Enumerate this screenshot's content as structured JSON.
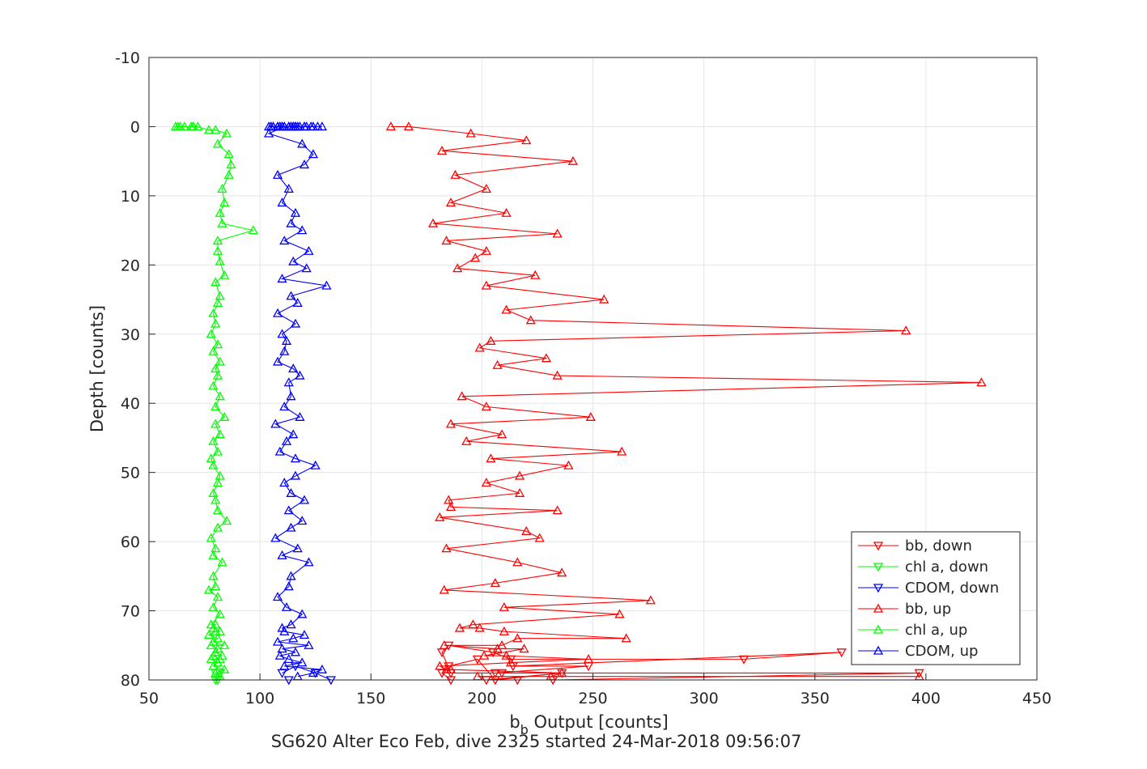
{
  "chart_data": {
    "type": "line",
    "title": "",
    "xlabel": "b",
    "xlabel_subscript": "b",
    "xlabel_suffix": " Output [counts]",
    "ylabel": "Depth [counts]",
    "subtitle": "SG620 Alter Eco Feb, dive 2325 started 24-Mar-2018 09:56:07",
    "xlim": [
      50,
      450
    ],
    "ylim": [
      -10,
      80
    ],
    "y_reversed": true,
    "grid": true,
    "legend_position": "bottom-right",
    "x_ticks": [
      "50",
      "100",
      "150",
      "200",
      "250",
      "300",
      "350",
      "400",
      "450"
    ],
    "y_ticks": [
      "-10",
      "0",
      "10",
      "20",
      "30",
      "40",
      "50",
      "60",
      "70",
      "80"
    ],
    "series": [
      {
        "name": "bb, down",
        "color": "#ff0000",
        "marker": "triangle-down",
        "x": [
          186,
          182,
          185,
          198,
          206,
          236,
          202,
          216,
          232,
          397,
          186,
          182,
          185,
          205,
          213,
          318,
          362,
          214,
          248,
          206,
          209
        ],
        "y": [
          80,
          79,
          78,
          77,
          80,
          79,
          80,
          80,
          80,
          79,
          79,
          76,
          75,
          76,
          77,
          77,
          76,
          78,
          78,
          79,
          79
        ]
      },
      {
        "name": "chl a, down",
        "color": "#00ff00",
        "marker": "triangle-down",
        "x": [
          80,
          81,
          80,
          82
        ],
        "y": [
          79,
          80,
          80,
          79
        ]
      },
      {
        "name": "CDOM, down",
        "color": "#0000ff",
        "marker": "triangle-down",
        "x": [
          110,
          116,
          125,
          132,
          113
        ],
        "y": [
          79,
          78,
          79,
          80,
          80
        ]
      },
      {
        "name": "bb, up",
        "color": "#ff0000",
        "marker": "triangle-up",
        "x": [
          397,
          198,
          231,
          236,
          186,
          184,
          181,
          213,
          248,
          211,
          201,
          219,
          207,
          183,
          209,
          216,
          265,
          210,
          199,
          190,
          196,
          262,
          210,
          276,
          183,
          206,
          236,
          216,
          184,
          226,
          220,
          181,
          234,
          186,
          185,
          217,
          202,
          217,
          239,
          204,
          263,
          193,
          209,
          186,
          249,
          202,
          191,
          425,
          234,
          207,
          229,
          199,
          204,
          391,
          222,
          211,
          255,
          202,
          224,
          189,
          197,
          202,
          184,
          234,
          178,
          211,
          186,
          202,
          188,
          241,
          182,
          220,
          195,
          167,
          159
        ],
        "y": [
          79.5,
          79.5,
          79.5,
          79.0,
          78.5,
          78.5,
          78.0,
          77.5,
          77.0,
          76.5,
          76.5,
          75.5,
          75.5,
          75.0,
          75.0,
          74.0,
          74.0,
          73.0,
          72.5,
          72.5,
          72.0,
          70.5,
          69.5,
          68.5,
          67.0,
          66.0,
          64.5,
          63.0,
          61.0,
          59.5,
          58.5,
          56.5,
          55.5,
          55.0,
          54.0,
          53.0,
          51.5,
          50.5,
          49.0,
          48.0,
          47.0,
          45.5,
          44.5,
          43.0,
          42.0,
          40.5,
          39.0,
          37.0,
          36.0,
          34.5,
          33.5,
          32.0,
          31.0,
          29.5,
          28.0,
          26.5,
          25.0,
          23.0,
          21.5,
          20.5,
          19.0,
          18.0,
          16.5,
          15.5,
          14.0,
          12.5,
          11.0,
          9.0,
          7.0,
          5.0,
          3.5,
          2.0,
          1.0,
          0,
          0
        ],
        "x_note": "",
        "y_note": ""
      },
      {
        "name": "chl a, up",
        "color": "#00ff00",
        "marker": "triangle-up",
        "x": [
          82,
          80,
          84,
          79,
          81,
          78,
          82,
          79,
          83,
          80,
          81,
          78,
          84,
          79,
          81,
          77,
          80,
          82,
          79,
          80,
          78,
          82,
          79,
          81,
          77,
          80,
          79,
          83,
          79,
          80,
          78,
          81,
          85,
          81,
          80,
          79,
          81,
          82,
          79,
          78,
          81,
          79,
          82,
          80,
          84,
          80,
          82,
          79,
          81,
          80,
          82,
          79,
          81,
          78,
          80,
          79,
          81,
          82,
          80,
          84,
          82,
          81,
          81,
          97,
          83,
          82,
          84,
          83,
          86,
          87,
          86,
          81,
          85,
          80,
          77,
          72,
          70,
          70,
          70,
          69,
          66,
          64,
          63,
          62
        ],
        "y": [
          79.5,
          79.0,
          78.5,
          78.0,
          77.5,
          77.0,
          77.0,
          76.5,
          76.5,
          76.0,
          75.5,
          75.0,
          75.0,
          74.5,
          74.0,
          73.5,
          73.0,
          73.0,
          72.5,
          72.0,
          72.0,
          70.5,
          69.5,
          68.0,
          67.0,
          66.5,
          65.0,
          63.0,
          62.0,
          61.0,
          59.5,
          58.0,
          57.0,
          55.5,
          54.0,
          53.0,
          51.5,
          50.5,
          49.0,
          48.0,
          47.0,
          45.5,
          44.5,
          43.0,
          42.0,
          40.5,
          39.0,
          37.5,
          36.0,
          35.0,
          34.0,
          32.5,
          31.5,
          30.0,
          28.5,
          27.0,
          25.5,
          24.5,
          22.5,
          21.5,
          19.5,
          18.0,
          16.5,
          15.0,
          14.0,
          12.5,
          11.0,
          9.0,
          7.0,
          5.5,
          4.0,
          2.5,
          1.0,
          0.5,
          0.5,
          0,
          0,
          0,
          0,
          0,
          0,
          0,
          0,
          0
        ],
        "x_note": "",
        "y_note": ""
      },
      {
        "name": "CDOM, up",
        "color": "#0000ff",
        "marker": "triangle-up",
        "x": [
          117,
          124,
          128,
          111,
          119,
          113,
          109,
          116,
          110,
          122,
          108,
          115,
          120,
          111,
          110,
          114,
          119,
          112,
          108,
          113,
          114,
          122,
          110,
          117,
          107,
          114,
          119,
          113,
          120,
          114,
          111,
          116,
          125,
          116,
          109,
          112,
          115,
          107,
          118,
          111,
          114,
          113,
          118,
          115,
          108,
          111,
          112,
          110,
          116,
          108,
          117,
          114,
          130,
          110,
          121,
          115,
          122,
          111,
          119,
          114,
          116,
          110,
          113,
          108,
          120,
          124,
          119,
          104,
          111,
          114,
          108,
          121,
          109,
          113,
          117,
          108,
          116,
          114,
          116,
          120,
          109,
          113,
          109,
          105,
          115,
          124,
          115,
          118,
          110,
          113,
          116,
          116,
          115,
          128,
          106,
          111,
          126,
          105,
          120,
          117,
          123,
          110,
          106,
          104
        ],
        "y": [
          79.5,
          79.0,
          78.5,
          78.0,
          77.5,
          77.0,
          76.5,
          76.0,
          75.5,
          75.0,
          74.5,
          74.0,
          73.5,
          73.0,
          72.5,
          72.0,
          70.5,
          69.5,
          68.0,
          66.5,
          65.0,
          63.0,
          62.0,
          61.0,
          59.5,
          58.0,
          57.0,
          55.5,
          54.0,
          53.0,
          51.5,
          50.5,
          49.0,
          48.0,
          47.0,
          45.5,
          44.5,
          43.0,
          42.0,
          40.5,
          39.0,
          37.0,
          36.0,
          35.0,
          34.0,
          32.5,
          31.0,
          30.0,
          28.5,
          27.0,
          25.5,
          24.5,
          23.0,
          22.0,
          20.5,
          19.5,
          18.0,
          16.5,
          15.0,
          14.0,
          12.5,
          11.0,
          9.0,
          7.0,
          5.5,
          4.0,
          2.5,
          1.0,
          0,
          0,
          0,
          0,
          0,
          0,
          0,
          0,
          0,
          0,
          0,
          0,
          0,
          0,
          0,
          0,
          0,
          0,
          0,
          0,
          0,
          0,
          0,
          0,
          0,
          0,
          0,
          0,
          0,
          0,
          0,
          0,
          0,
          0,
          0,
          0
        ],
        "x_note": "",
        "y_note": ""
      }
    ]
  }
}
